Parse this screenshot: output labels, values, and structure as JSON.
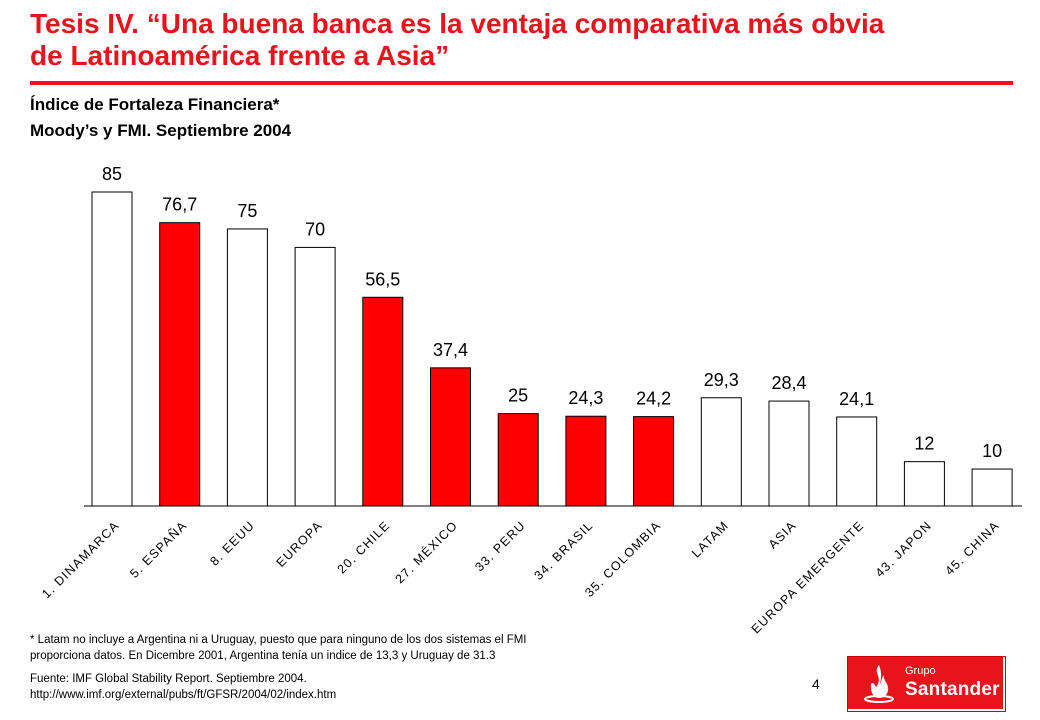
{
  "slide": {
    "title_line1": "Tesis IV. “Una buena banca es la ventaja comparativa más obvia",
    "title_line2": "de Latinoamérica frente a Asia”",
    "subtitle_line1": "Índice de Fortaleza Financiera*",
    "subtitle_line2": "Moody’s y FMI. Septiembre 2004",
    "footnote_line1": "* Latam no incluye a Argentina ni a Uruguay, puesto que para ninguno de los dos sistemas el FMI",
    "footnote_line2": "proporciona datos. En Dicembre 2001, Argentina tenía un indice de 13,3 y Uruguay  de 31.3",
    "source_line1": "Fuente: IMF Global Stability Report. Septiembre 2004.",
    "source_line2": "http://www.imf.org/external/pubs/ft/GFSR/2004/02/index.htm",
    "page_number": "4",
    "logo_small": "Grupo",
    "logo_brand": "Santander"
  },
  "colors": {
    "accent": "#e8141c",
    "highlight_bar": "#ff0000",
    "plain_bar": "#ffffff",
    "bar_border": "#000000"
  },
  "chart_data": {
    "type": "bar",
    "categories": [
      "1. DINAMARCA",
      "5. ESPAÑA",
      "8. EEUU",
      "EUROPA",
      "20. CHILE",
      "27. MÉXICO",
      "33. PERU",
      "34. BRASIL",
      "35. COLOMBIA",
      "LATAM",
      "ASIA",
      "EUROPA EMERGENTE",
      "43. JAPON",
      "45. CHINA"
    ],
    "values": [
      85,
      76.7,
      75,
      70,
      56.5,
      37.4,
      25,
      24.3,
      24.2,
      29.3,
      28.4,
      24.1,
      12,
      10
    ],
    "value_labels": [
      "85",
      "76,7",
      "75",
      "70",
      "56,5",
      "37,4",
      "25",
      "24,3",
      "24,2",
      "29,3",
      "28,4",
      "24,1",
      "12",
      "10"
    ],
    "highlighted": [
      false,
      true,
      false,
      false,
      true,
      true,
      true,
      true,
      true,
      false,
      false,
      false,
      false,
      false
    ],
    "ylim": [
      0,
      85
    ],
    "grid": false,
    "legend": "none"
  }
}
